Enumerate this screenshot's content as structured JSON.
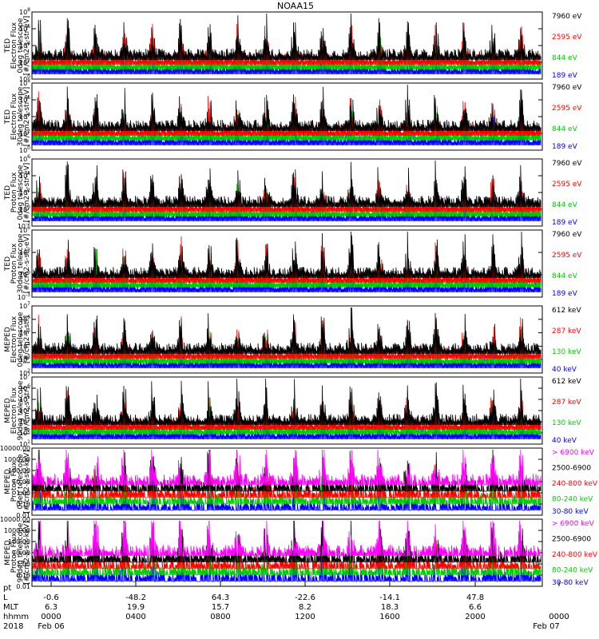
{
  "chart_data": {
    "type": "line",
    "title": "NOAA15",
    "x_start_label": "Feb 06",
    "x_end_label": "Feb 07",
    "year": "2018",
    "xaxis_rows": [
      {
        "name": "pt",
        "ticks": [
          "",
          "",
          "",
          "",
          "",
          "",
          "",
          ""
        ]
      },
      {
        "name": "L",
        "ticks": [
          "-0.6",
          "-48.2",
          "64.3",
          "-22.6",
          "-14.1",
          "47.8",
          ""
        ]
      },
      {
        "name": "MLT",
        "ticks": [
          "6.3",
          "19.9",
          "15.7",
          "8.2",
          "18.3",
          "6.6",
          ""
        ]
      },
      {
        "name": "hhmm",
        "ticks": [
          "0000",
          "0400",
          "0800",
          "1200",
          "1600",
          "2000",
          "0000"
        ]
      }
    ],
    "panels": [
      {
        "ylabel": "TED\nElectron Flux\n0deg telescope\n[#/cm2-s-str-eV]",
        "yticks": [
          "10^8",
          "10^6",
          "10^4",
          "10^2",
          "10^0"
        ],
        "scale": "log",
        "legend": [
          {
            "label": "7960 eV",
            "color": "#000000"
          },
          {
            "label": "2595 eV",
            "color": "#ff0000"
          },
          {
            "label": "844 eV",
            "color": "#00cc00"
          },
          {
            "label": "189 eV",
            "color": "#0000ff"
          }
        ]
      },
      {
        "ylabel": "TED\nElectron Flux\n30deg telescope\n[#/cm2-s-str-eV]",
        "yticks": [
          "10^8",
          "10^6",
          "10^4",
          "10^2",
          "10^0"
        ],
        "scale": "log",
        "legend": [
          {
            "label": "7960 eV",
            "color": "#000000"
          },
          {
            "label": "2595 eV",
            "color": "#ff0000"
          },
          {
            "label": "844 eV",
            "color": "#00cc00"
          },
          {
            "label": "189 eV",
            "color": "#0000ff"
          }
        ]
      },
      {
        "ylabel": "TED\nProton Flux\n0deg telescope\n[#/cm2-s-str-eV]",
        "yticks": [
          "10^6",
          "10^4",
          "10^2",
          "10^0",
          "10^-2"
        ],
        "scale": "log",
        "legend": [
          {
            "label": "7960 eV",
            "color": "#000000"
          },
          {
            "label": "2595 eV",
            "color": "#ff0000"
          },
          {
            "label": "844 eV",
            "color": "#00cc00"
          },
          {
            "label": "189 eV",
            "color": "#0000ff"
          }
        ]
      },
      {
        "ylabel": "TED\nProton Flux\n30deg telescope\n[#/cm2-s-str-eV]",
        "yticks": [
          "10^6",
          "10^3",
          "10^0",
          "10^-3"
        ],
        "scale": "log",
        "legend": [
          {
            "label": "7960 eV",
            "color": "#000000"
          },
          {
            "label": "2595 eV",
            "color": "#ff0000"
          },
          {
            "label": "844 eV",
            "color": "#00cc00"
          },
          {
            "label": "189 eV",
            "color": "#0000ff"
          }
        ]
      },
      {
        "ylabel": "MEPED\nElectron Flux\n0deg telescope\n[#/cm2-s-str]",
        "yticks": [
          "10^7",
          "10^6",
          "10^5",
          "10^4",
          "10^3",
          "10^2"
        ],
        "scale": "log",
        "legend": [
          {
            "label": "612 keV",
            "color": "#000000"
          },
          {
            "label": "287 keV",
            "color": "#ff0000"
          },
          {
            "label": "130 keV",
            "color": "#00cc00"
          },
          {
            "label": "40 keV",
            "color": "#0000ff"
          }
        ]
      },
      {
        "ylabel": "MEPED\nElectron Flux\n90deg telescope\n[#/cm2-s-str]",
        "yticks": [
          "10^7",
          "10^6",
          "10^5",
          "10^4",
          "10^3",
          "10^2",
          "10^1"
        ],
        "scale": "log",
        "legend": [
          {
            "label": "612 keV",
            "color": "#000000"
          },
          {
            "label": "287 keV",
            "color": "#ff0000"
          },
          {
            "label": "130 keV",
            "color": "#00cc00"
          },
          {
            "label": "40 keV",
            "color": "#0000ff"
          }
        ]
      },
      {
        "ylabel": "MEPED\nProton Flux\n0deg telescope\n[#/cm2-s-str-keV]",
        "yticks": [
          "10000.00",
          "1000.00",
          "100.00",
          "10.00",
          "1.00",
          "0.10",
          "0.01"
        ],
        "scale": "log",
        "legend": [
          {
            "label": "> 6900 keV",
            "color": "#ff00ff"
          },
          {
            "label": "2500-6900",
            "color": "#000000"
          },
          {
            "label": "240-800 keV",
            "color": "#ff0000"
          },
          {
            "label": "80-240 keV",
            "color": "#00cc00"
          },
          {
            "label": "30-80 keV",
            "color": "#0000ff"
          }
        ]
      },
      {
        "ylabel": "MEPED\nProton Flux\n90deg telescope\n[#/cm2-s-str-keV]",
        "yticks": [
          "10000.00",
          "1000.00",
          "100.00",
          "10.00",
          "1.00",
          "0.10",
          "0.01"
        ],
        "scale": "log",
        "legend": [
          {
            "label": "> 6900 keV",
            "color": "#ff00ff"
          },
          {
            "label": "2500-6900",
            "color": "#000000"
          },
          {
            "label": "240-800 keV",
            "color": "#ff0000"
          },
          {
            "label": "80-240 keV",
            "color": "#00cc00"
          },
          {
            "label": "30-80 keV",
            "color": "#0000ff"
          }
        ]
      }
    ]
  }
}
